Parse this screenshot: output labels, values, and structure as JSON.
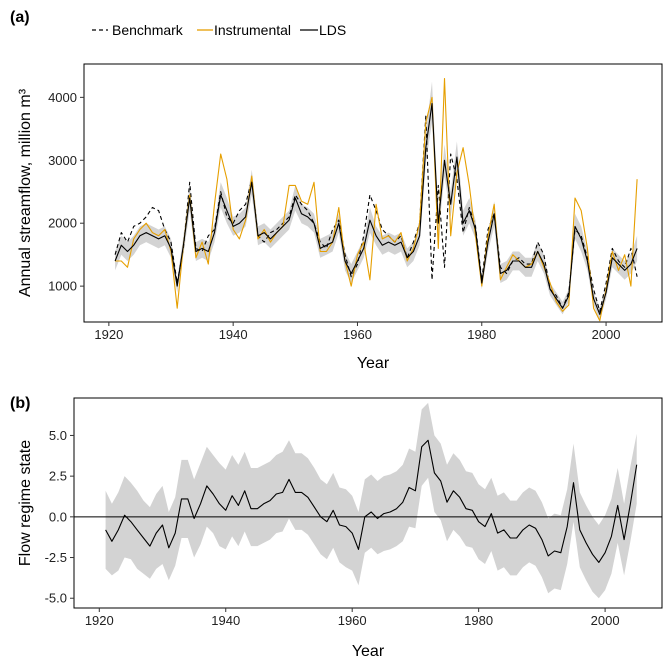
{
  "colors": {
    "benchmark": "#000000",
    "instrumental": "#E69F00",
    "lds": "#000000",
    "band": "#d3d3d3",
    "zero_line": "#000000"
  },
  "chart_data": [
    {
      "panel_label": "(a)",
      "type": "line",
      "xlabel": "Year",
      "ylabel": "Annual streamflow, million m³",
      "xlim": [
        1916,
        2009
      ],
      "ylim": [
        430,
        4530
      ],
      "x_ticks": [
        1920,
        1940,
        1960,
        1980,
        2000
      ],
      "y_ticks": [
        1000,
        2000,
        3000,
        4000
      ],
      "legend": {
        "placement": "top",
        "entries": [
          {
            "label": "Benchmark",
            "style": "dashed"
          },
          {
            "label": "Instrumental",
            "style": "solid-orange"
          },
          {
            "label": "LDS",
            "style": "solid-black"
          }
        ]
      },
      "x": [
        1921,
        1922,
        1923,
        1924,
        1925,
        1926,
        1927,
        1928,
        1929,
        1930,
        1931,
        1932,
        1933,
        1934,
        1935,
        1936,
        1937,
        1938,
        1939,
        1940,
        1941,
        1942,
        1943,
        1944,
        1945,
        1946,
        1947,
        1948,
        1949,
        1950,
        1951,
        1952,
        1953,
        1954,
        1955,
        1956,
        1957,
        1958,
        1959,
        1960,
        1961,
        1962,
        1963,
        1964,
        1965,
        1966,
        1967,
        1968,
        1969,
        1970,
        1971,
        1972,
        1973,
        1974,
        1975,
        1976,
        1977,
        1978,
        1979,
        1980,
        1981,
        1982,
        1983,
        1984,
        1985,
        1986,
        1987,
        1988,
        1989,
        1990,
        1991,
        1992,
        1993,
        1994,
        1995,
        1996,
        1997,
        1998,
        1999,
        2000,
        2001,
        2002,
        2003,
        2004,
        2005
      ],
      "series": [
        {
          "name": "Benchmark",
          "values": [
            1500,
            1850,
            1700,
            1950,
            2000,
            2100,
            2250,
            2200,
            1900,
            1700,
            1050,
            1600,
            2650,
            1600,
            1550,
            1800,
            1900,
            2500,
            2100,
            2000,
            2200,
            2300,
            2700,
            1800,
            1700,
            1850,
            1900,
            2000,
            2100,
            2450,
            2300,
            2200,
            2000,
            1700,
            1600,
            1900,
            2050,
            1500,
            1150,
            1350,
            1800,
            2450,
            2200,
            1900,
            1800,
            1700,
            1800,
            1450,
            1700,
            2000,
            3700,
            1100,
            2600,
            1300,
            3100,
            2700,
            1850,
            2250,
            1950,
            1100,
            1900,
            2150,
            1300,
            1200,
            1400,
            1450,
            1350,
            1350,
            1700,
            1500,
            950,
            850,
            650,
            900,
            1900,
            1800,
            1450,
            950,
            600,
            1050,
            1600,
            1400,
            1300,
            1600,
            1150
          ]
        },
        {
          "name": "Instrumental",
          "values": [
            1400,
            1400,
            1300,
            1750,
            1900,
            2000,
            1850,
            1800,
            1900,
            1550,
            650,
            1650,
            2450,
            1450,
            1700,
            1350,
            2300,
            3100,
            2700,
            1900,
            1750,
            2050,
            2750,
            1750,
            1900,
            1700,
            1850,
            1950,
            2600,
            2600,
            2350,
            2300,
            2650,
            1550,
            1550,
            1700,
            2250,
            1400,
            1000,
            1500,
            1700,
            1100,
            2300,
            1750,
            1800,
            1700,
            1850,
            1400,
            1600,
            2000,
            3600,
            4000,
            1600,
            4300,
            1800,
            2800,
            3200,
            2600,
            1800,
            1000,
            1800,
            2300,
            1100,
            1300,
            1500,
            1400,
            1300,
            1350,
            1550,
            1300,
            1050,
            750,
            600,
            700,
            2400,
            2200,
            1600,
            650,
            450,
            950,
            1550,
            1250,
            1500,
            1000,
            2700
          ]
        },
        {
          "name": "LDS",
          "values": [
            1400,
            1650,
            1550,
            1650,
            1800,
            1850,
            1800,
            1750,
            1800,
            1600,
            1000,
            1650,
            2400,
            1550,
            1600,
            1550,
            1850,
            2450,
            2200,
            1950,
            2000,
            2100,
            2650,
            1800,
            1850,
            1750,
            1850,
            1950,
            2050,
            2400,
            2150,
            2100,
            2000,
            1600,
            1650,
            1700,
            2000,
            1400,
            1200,
            1400,
            1600,
            2050,
            1800,
            1650,
            1700,
            1650,
            1700,
            1450,
            1550,
            1800,
            3200,
            3900,
            2000,
            3000,
            2300,
            3050,
            2000,
            2200,
            1900,
            1050,
            1700,
            2150,
            1200,
            1250,
            1400,
            1400,
            1300,
            1300,
            1550,
            1350,
            950,
            800,
            650,
            850,
            1950,
            1750,
            1400,
            800,
            550,
            900,
            1450,
            1350,
            1250,
            1350,
            1600
          ]
        }
      ],
      "band": {
        "lower": [
          1250,
          1500,
          1400,
          1500,
          1650,
          1700,
          1650,
          1600,
          1650,
          1450,
          900,
          1500,
          2200,
          1400,
          1450,
          1400,
          1700,
          2250,
          2000,
          1800,
          1850,
          1950,
          2450,
          1650,
          1700,
          1600,
          1700,
          1800,
          1900,
          2200,
          2000,
          1950,
          1850,
          1450,
          1500,
          1550,
          1850,
          1250,
          1050,
          1250,
          1450,
          1850,
          1650,
          1500,
          1550,
          1500,
          1550,
          1300,
          1400,
          1650,
          2950,
          3600,
          1800,
          2750,
          2100,
          2800,
          1800,
          2000,
          1750,
          950,
          1550,
          1950,
          1050,
          1100,
          1250,
          1250,
          1150,
          1150,
          1400,
          1200,
          850,
          700,
          550,
          750,
          1750,
          1550,
          1250,
          700,
          450,
          800,
          1300,
          1200,
          1100,
          1200,
          1400
        ],
        "upper": [
          1550,
          1800,
          1700,
          1800,
          1950,
          2000,
          1950,
          1900,
          1950,
          1750,
          1100,
          1800,
          2600,
          1700,
          1750,
          1700,
          2000,
          2650,
          2400,
          2100,
          2150,
          2250,
          2850,
          1950,
          2000,
          1900,
          2000,
          2100,
          2200,
          2600,
          2300,
          2250,
          2150,
          1750,
          1800,
          1850,
          2150,
          1550,
          1350,
          1550,
          1750,
          2250,
          1950,
          1800,
          1850,
          1800,
          1850,
          1600,
          1700,
          1950,
          3450,
          4250,
          2200,
          3250,
          2500,
          3300,
          2200,
          2400,
          2050,
          1150,
          1850,
          2350,
          1350,
          1400,
          1550,
          1550,
          1450,
          1450,
          1700,
          1500,
          1050,
          900,
          750,
          950,
          2150,
          1950,
          1550,
          900,
          650,
          1000,
          1600,
          1500,
          1400,
          1500,
          1800
        ]
      }
    },
    {
      "panel_label": "(b)",
      "type": "line",
      "xlabel": "Year",
      "ylabel": "Flow regime state",
      "xlim": [
        1916,
        2009
      ],
      "ylim": [
        -5.6,
        7.3
      ],
      "x_ticks": [
        1920,
        1940,
        1960,
        1980,
        2000
      ],
      "y_ticks": [
        -5.0,
        -2.5,
        0.0,
        2.5,
        5.0
      ],
      "y_tick_labels": [
        "-5.0",
        "-2.5",
        "0.0",
        "2.5",
        "5.0"
      ],
      "reference_line": 0,
      "x": [
        1921,
        1922,
        1923,
        1924,
        1925,
        1926,
        1927,
        1928,
        1929,
        1930,
        1931,
        1932,
        1933,
        1934,
        1935,
        1936,
        1937,
        1938,
        1939,
        1940,
        1941,
        1942,
        1943,
        1944,
        1945,
        1946,
        1947,
        1948,
        1949,
        1950,
        1951,
        1952,
        1953,
        1954,
        1955,
        1956,
        1957,
        1958,
        1959,
        1960,
        1961,
        1962,
        1963,
        1964,
        1965,
        1966,
        1967,
        1968,
        1969,
        1970,
        1971,
        1972,
        1973,
        1974,
        1975,
        1976,
        1977,
        1978,
        1979,
        1980,
        1981,
        1982,
        1983,
        1984,
        1985,
        1986,
        1987,
        1988,
        1989,
        1990,
        1991,
        1992,
        1993,
        1994,
        1995,
        1996,
        1997,
        1998,
        1999,
        2000,
        2001,
        2002,
        2003,
        2004,
        2005
      ],
      "series": [
        {
          "name": "",
          "values": [
            -0.8,
            -1.5,
            -0.8,
            0.1,
            -0.3,
            -0.8,
            -1.3,
            -1.8,
            -1.0,
            -0.5,
            -1.9,
            -1.0,
            1.1,
            1.1,
            -0.1,
            0.8,
            1.9,
            1.4,
            0.8,
            0.4,
            1.3,
            0.7,
            1.6,
            0.5,
            0.5,
            0.8,
            1.0,
            1.4,
            1.5,
            2.3,
            1.5,
            1.5,
            1.2,
            0.6,
            0.0,
            -0.3,
            0.4,
            -0.5,
            -0.6,
            -1.0,
            -2.0,
            0.0,
            0.3,
            -0.1,
            0.2,
            0.3,
            0.5,
            0.9,
            1.8,
            1.6,
            4.3,
            4.7,
            2.7,
            2.2,
            0.9,
            1.6,
            1.2,
            0.5,
            0.4,
            -0.3,
            -0.6,
            0.2,
            -1.0,
            -0.8,
            -1.3,
            -1.3,
            -0.8,
            -0.5,
            -0.7,
            -1.4,
            -2.4,
            -2.1,
            -2.2,
            -0.6,
            2.1,
            -0.8,
            -1.6,
            -2.3,
            -2.8,
            -2.2,
            -1.2,
            0.7,
            -1.4,
            0.8,
            3.2
          ]
        }
      ],
      "band": {
        "lower": [
          -3.2,
          -3.6,
          -3.3,
          -2.5,
          -2.6,
          -3.2,
          -3.5,
          -3.8,
          -3.2,
          -2.9,
          -3.9,
          -3.0,
          -1.3,
          -1.3,
          -2.5,
          -1.7,
          -0.6,
          -1.0,
          -1.8,
          -2.0,
          -1.2,
          -1.8,
          -0.9,
          -1.8,
          -1.8,
          -1.6,
          -1.4,
          -1.0,
          -0.9,
          -0.1,
          -0.8,
          -0.8,
          -1.1,
          -1.7,
          -2.3,
          -2.6,
          -1.9,
          -2.8,
          -3.1,
          -3.3,
          -4.2,
          -2.2,
          -1.9,
          -2.3,
          -2.1,
          -2.0,
          -1.8,
          -1.5,
          -0.6,
          -0.7,
          1.9,
          2.4,
          0.3,
          -0.2,
          -1.5,
          -0.8,
          -1.2,
          -1.8,
          -1.9,
          -2.6,
          -2.9,
          -2.1,
          -3.3,
          -3.1,
          -3.6,
          -3.6,
          -3.1,
          -2.8,
          -3.0,
          -3.7,
          -4.7,
          -4.4,
          -4.5,
          -2.9,
          -0.3,
          -3.1,
          -3.9,
          -4.6,
          -5.0,
          -4.5,
          -3.5,
          -1.6,
          -3.6,
          -1.5,
          0.8
        ],
        "upper": [
          1.6,
          0.8,
          1.5,
          2.5,
          2.1,
          1.6,
          1.0,
          0.6,
          1.4,
          1.9,
          0.3,
          1.2,
          3.5,
          3.5,
          2.3,
          3.3,
          4.3,
          3.8,
          3.3,
          2.9,
          3.8,
          3.2,
          4.0,
          3.0,
          3.0,
          3.2,
          3.4,
          3.8,
          4.0,
          4.7,
          3.9,
          3.9,
          3.6,
          3.0,
          2.3,
          2.0,
          2.7,
          1.8,
          1.7,
          1.3,
          0.3,
          2.3,
          2.6,
          2.2,
          2.5,
          2.6,
          2.8,
          3.2,
          4.2,
          4.0,
          6.6,
          7.0,
          5.0,
          4.5,
          3.2,
          3.9,
          3.5,
          2.8,
          2.7,
          2.0,
          1.7,
          2.4,
          1.3,
          1.5,
          1.0,
          1.0,
          1.5,
          1.8,
          1.6,
          0.9,
          -0.1,
          0.2,
          0.1,
          1.7,
          4.5,
          1.5,
          0.7,
          0.0,
          -0.5,
          0.1,
          1.1,
          3.0,
          0.8,
          3.1,
          5.1
        ]
      }
    }
  ]
}
